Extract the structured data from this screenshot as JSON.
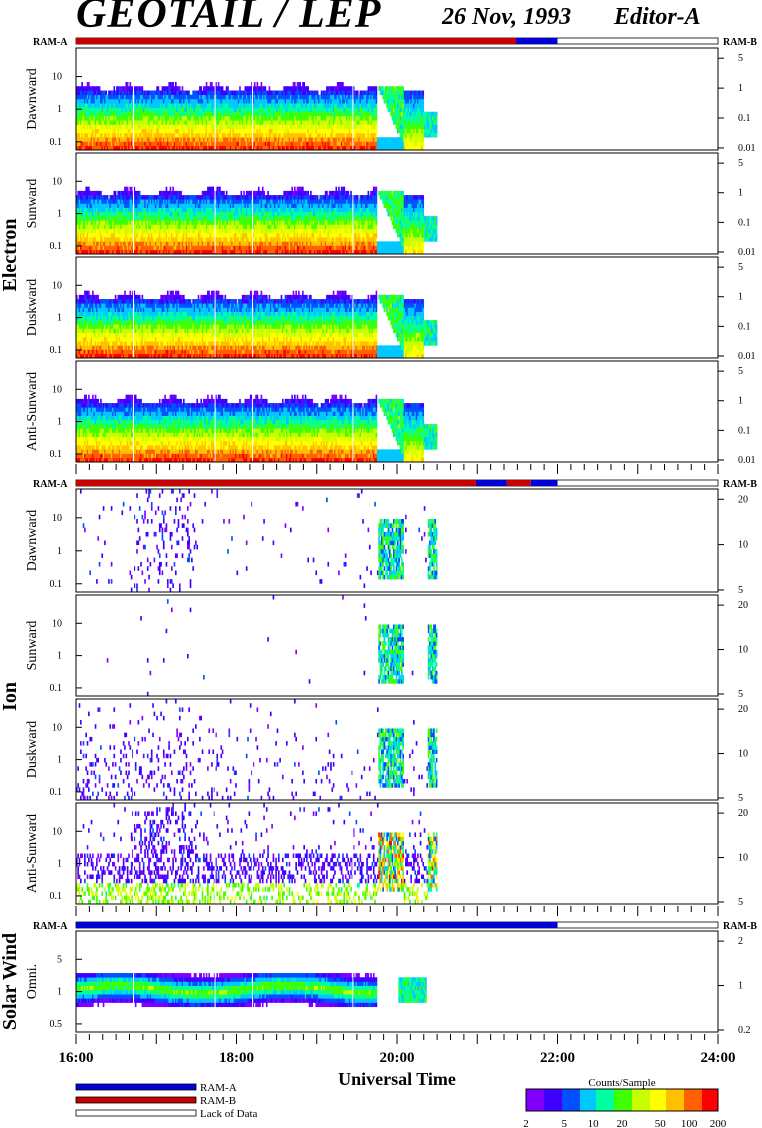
{
  "header": {
    "title": "GEOTAIL / LEP",
    "date": "26 Nov, 1993",
    "editor": "Editor-A"
  },
  "colors": {
    "ram_a": "#0000d8",
    "ram_b": "#c80000",
    "colorbar": [
      "#8000ff",
      "#4000ff",
      "#0050ff",
      "#00c8ff",
      "#00ffa0",
      "#40ff00",
      "#c8ff00",
      "#ffff00",
      "#ffc000",
      "#ff6000",
      "#ff0000"
    ]
  },
  "chart_data": {
    "type": "heatmap",
    "x_axis": {
      "label": "Universal Time",
      "range": [
        "16:00",
        "24:00"
      ],
      "ticks": [
        "16:00",
        "18:00",
        "20:00",
        "22:00",
        "24:00"
      ],
      "data_end": "20:30"
    },
    "groups": [
      {
        "name": "Electron",
        "mode_bar": {
          "left_label": "RAM-A",
          "right_label": "RAM-B"
        },
        "panels": [
          {
            "name": "Dawnward",
            "left_ticks": [
              "10",
              "1",
              "0.1"
            ],
            "right_ticks": [
              "5",
              "1",
              "0.1",
              "0.01"
            ]
          },
          {
            "name": "Sunward",
            "left_ticks": [
              "10",
              "1",
              "0.1"
            ],
            "right_ticks": [
              "5",
              "1",
              "0.1",
              "0.01"
            ]
          },
          {
            "name": "Duskward",
            "left_ticks": [
              "10",
              "1",
              "0.1"
            ],
            "right_ticks": [
              "5",
              "1",
              "0.1",
              "0.01"
            ]
          },
          {
            "name": "Anti-Sunward",
            "left_ticks": [
              "10",
              "1",
              "0.1"
            ],
            "right_ticks": [
              "5",
              "1",
              "0.1",
              "0.01"
            ]
          }
        ]
      },
      {
        "name": "Ion",
        "mode_bar": {
          "left_label": "RAM-A",
          "right_label": "RAM-B"
        },
        "panels": [
          {
            "name": "Dawnward",
            "left_ticks": [
              "10",
              "1",
              "0.1"
            ],
            "right_ticks": [
              "20",
              "10",
              "5"
            ]
          },
          {
            "name": "Sunward",
            "left_ticks": [
              "10",
              "1",
              "0.1"
            ],
            "right_ticks": [
              "20",
              "10",
              "5"
            ]
          },
          {
            "name": "Duskward",
            "left_ticks": [
              "10",
              "1",
              "0.1"
            ],
            "right_ticks": [
              "20",
              "10",
              "5"
            ]
          },
          {
            "name": "Anti-Sunward",
            "left_ticks": [
              "10",
              "1",
              "0.1"
            ],
            "right_ticks": [
              "20",
              "10",
              "5"
            ]
          }
        ]
      },
      {
        "name": "Solar Wind",
        "mode_bar": {
          "left_label": "RAM-A",
          "right_label": "RAM-B"
        },
        "panels": [
          {
            "name": "Omni.",
            "left_ticks": [
              "5",
              "1",
              "0.5"
            ],
            "right_ticks": [
              "2",
              "1",
              "0.2"
            ]
          }
        ]
      }
    ],
    "legend": {
      "entries": [
        "RAM-A",
        "RAM-B",
        "Lack of Data"
      ],
      "placement": "bottom-left"
    },
    "colorbar": {
      "title": "Counts/Sample",
      "ticks": [
        "2",
        "5",
        "10",
        "20",
        "50",
        "100",
        "200"
      ],
      "placement": "bottom-right"
    }
  }
}
